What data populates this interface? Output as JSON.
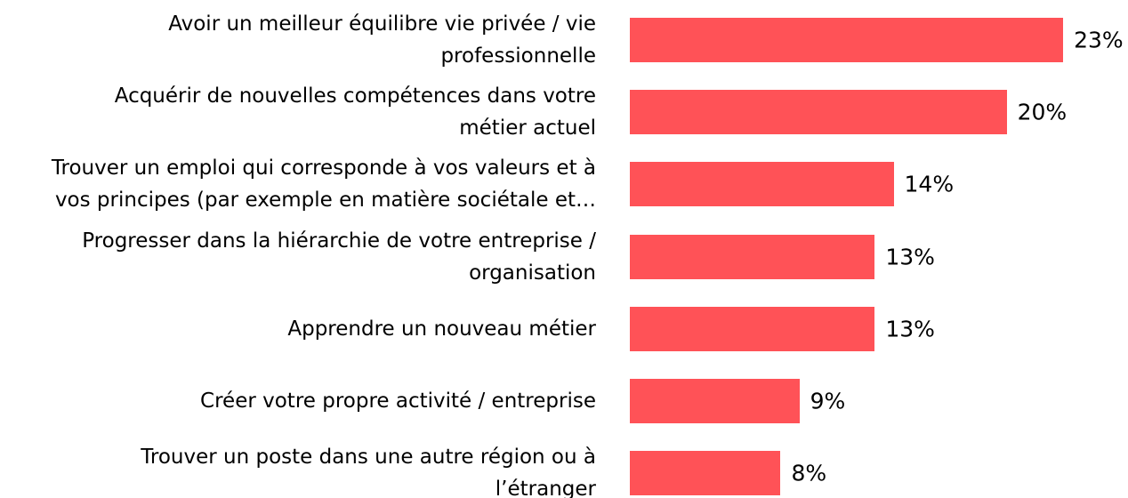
{
  "chart_data": {
    "type": "bar",
    "orientation": "horizontal",
    "categories": [
      "Avoir un meilleur équilibre vie privée / vie\nprofessionnelle",
      "Acquérir de nouvelles compétences dans votre\nmétier actuel",
      "Trouver un emploi qui corresponde à vos valeurs et à\nvos principes (par exemple en matière sociétale et…",
      "Progresser dans la hiérarchie de votre entreprise /\norganisation",
      "Apprendre un nouveau métier",
      "Créer votre propre activité / entreprise",
      "Trouver un poste dans une autre région ou à\nl’étranger"
    ],
    "values": [
      23,
      20,
      14,
      13,
      13,
      9,
      8
    ],
    "value_labels": [
      "23%",
      "20%",
      "14%",
      "13%",
      "13%",
      "9%",
      "8%"
    ],
    "color": "#ff5257",
    "xlim": [
      0,
      25
    ]
  }
}
